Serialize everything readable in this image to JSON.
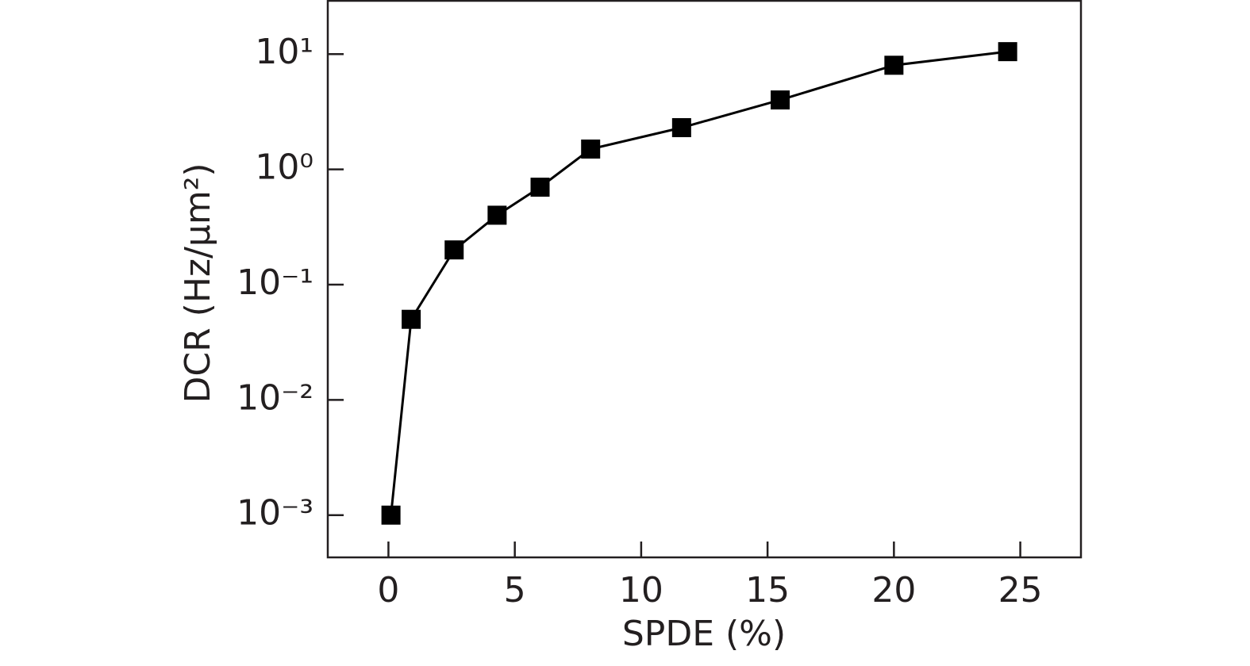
{
  "chart_data": {
    "type": "line",
    "x_label": "SPDE (%)",
    "y_label": "DCR (Hz/μm²)",
    "x": [
      0.1,
      0.9,
      2.6,
      4.3,
      6.0,
      8.0,
      11.6,
      15.5,
      20.0,
      24.5
    ],
    "series": [
      {
        "color": "#000000",
        "values": [
          0.001,
          0.05,
          0.2,
          0.4,
          0.7,
          1.5,
          2.3,
          4.0,
          8.0,
          10.5
        ]
      }
    ],
    "xlim": [
      -2.4,
      27.4
    ],
    "xticks": [
      0,
      5,
      10,
      15,
      20,
      25
    ],
    "ylim": [
      0.00043,
      29
    ],
    "yticks": [
      {
        "value": 0.001,
        "label": "10⁻³"
      },
      {
        "value": 0.01,
        "label": "10⁻²"
      },
      {
        "value": 0.1,
        "label": "10⁻¹"
      },
      {
        "value": 1,
        "label": "10⁰"
      },
      {
        "value": 10,
        "label": "10¹"
      }
    ],
    "y_scale": "log",
    "grid": false
  }
}
